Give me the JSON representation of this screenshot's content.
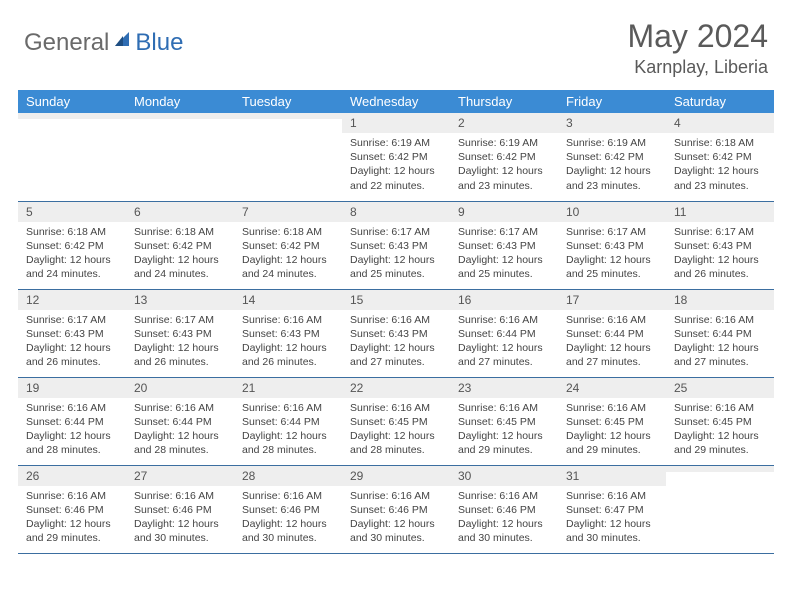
{
  "brand": {
    "part1": "General",
    "part2": "Blue",
    "color1": "#6a6a6a",
    "color2": "#2f6db3",
    "icon_color": "#2f6db3"
  },
  "title": "May 2024",
  "location": "Karnplay, Liberia",
  "colors": {
    "header_bg": "#3b8bd4",
    "header_fg": "#ffffff",
    "daynum_bg": "#eeeeee",
    "border": "#3b6ea0",
    "text": "#444444"
  },
  "day_headers": [
    "Sunday",
    "Monday",
    "Tuesday",
    "Wednesday",
    "Thursday",
    "Friday",
    "Saturday"
  ],
  "weeks": [
    [
      {
        "n": "",
        "sunrise": "",
        "sunset": "",
        "daylight": ""
      },
      {
        "n": "",
        "sunrise": "",
        "sunset": "",
        "daylight": ""
      },
      {
        "n": "",
        "sunrise": "",
        "sunset": "",
        "daylight": ""
      },
      {
        "n": "1",
        "sunrise": "6:19 AM",
        "sunset": "6:42 PM",
        "daylight": "12 hours and 22 minutes."
      },
      {
        "n": "2",
        "sunrise": "6:19 AM",
        "sunset": "6:42 PM",
        "daylight": "12 hours and 23 minutes."
      },
      {
        "n": "3",
        "sunrise": "6:19 AM",
        "sunset": "6:42 PM",
        "daylight": "12 hours and 23 minutes."
      },
      {
        "n": "4",
        "sunrise": "6:18 AM",
        "sunset": "6:42 PM",
        "daylight": "12 hours and 23 minutes."
      }
    ],
    [
      {
        "n": "5",
        "sunrise": "6:18 AM",
        "sunset": "6:42 PM",
        "daylight": "12 hours and 24 minutes."
      },
      {
        "n": "6",
        "sunrise": "6:18 AM",
        "sunset": "6:42 PM",
        "daylight": "12 hours and 24 minutes."
      },
      {
        "n": "7",
        "sunrise": "6:18 AM",
        "sunset": "6:42 PM",
        "daylight": "12 hours and 24 minutes."
      },
      {
        "n": "8",
        "sunrise": "6:17 AM",
        "sunset": "6:43 PM",
        "daylight": "12 hours and 25 minutes."
      },
      {
        "n": "9",
        "sunrise": "6:17 AM",
        "sunset": "6:43 PM",
        "daylight": "12 hours and 25 minutes."
      },
      {
        "n": "10",
        "sunrise": "6:17 AM",
        "sunset": "6:43 PM",
        "daylight": "12 hours and 25 minutes."
      },
      {
        "n": "11",
        "sunrise": "6:17 AM",
        "sunset": "6:43 PM",
        "daylight": "12 hours and 26 minutes."
      }
    ],
    [
      {
        "n": "12",
        "sunrise": "6:17 AM",
        "sunset": "6:43 PM",
        "daylight": "12 hours and 26 minutes."
      },
      {
        "n": "13",
        "sunrise": "6:17 AM",
        "sunset": "6:43 PM",
        "daylight": "12 hours and 26 minutes."
      },
      {
        "n": "14",
        "sunrise": "6:16 AM",
        "sunset": "6:43 PM",
        "daylight": "12 hours and 26 minutes."
      },
      {
        "n": "15",
        "sunrise": "6:16 AM",
        "sunset": "6:43 PM",
        "daylight": "12 hours and 27 minutes."
      },
      {
        "n": "16",
        "sunrise": "6:16 AM",
        "sunset": "6:44 PM",
        "daylight": "12 hours and 27 minutes."
      },
      {
        "n": "17",
        "sunrise": "6:16 AM",
        "sunset": "6:44 PM",
        "daylight": "12 hours and 27 minutes."
      },
      {
        "n": "18",
        "sunrise": "6:16 AM",
        "sunset": "6:44 PM",
        "daylight": "12 hours and 27 minutes."
      }
    ],
    [
      {
        "n": "19",
        "sunrise": "6:16 AM",
        "sunset": "6:44 PM",
        "daylight": "12 hours and 28 minutes."
      },
      {
        "n": "20",
        "sunrise": "6:16 AM",
        "sunset": "6:44 PM",
        "daylight": "12 hours and 28 minutes."
      },
      {
        "n": "21",
        "sunrise": "6:16 AM",
        "sunset": "6:44 PM",
        "daylight": "12 hours and 28 minutes."
      },
      {
        "n": "22",
        "sunrise": "6:16 AM",
        "sunset": "6:45 PM",
        "daylight": "12 hours and 28 minutes."
      },
      {
        "n": "23",
        "sunrise": "6:16 AM",
        "sunset": "6:45 PM",
        "daylight": "12 hours and 29 minutes."
      },
      {
        "n": "24",
        "sunrise": "6:16 AM",
        "sunset": "6:45 PM",
        "daylight": "12 hours and 29 minutes."
      },
      {
        "n": "25",
        "sunrise": "6:16 AM",
        "sunset": "6:45 PM",
        "daylight": "12 hours and 29 minutes."
      }
    ],
    [
      {
        "n": "26",
        "sunrise": "6:16 AM",
        "sunset": "6:46 PM",
        "daylight": "12 hours and 29 minutes."
      },
      {
        "n": "27",
        "sunrise": "6:16 AM",
        "sunset": "6:46 PM",
        "daylight": "12 hours and 30 minutes."
      },
      {
        "n": "28",
        "sunrise": "6:16 AM",
        "sunset": "6:46 PM",
        "daylight": "12 hours and 30 minutes."
      },
      {
        "n": "29",
        "sunrise": "6:16 AM",
        "sunset": "6:46 PM",
        "daylight": "12 hours and 30 minutes."
      },
      {
        "n": "30",
        "sunrise": "6:16 AM",
        "sunset": "6:46 PM",
        "daylight": "12 hours and 30 minutes."
      },
      {
        "n": "31",
        "sunrise": "6:16 AM",
        "sunset": "6:47 PM",
        "daylight": "12 hours and 30 minutes."
      },
      {
        "n": "",
        "sunrise": "",
        "sunset": "",
        "daylight": ""
      }
    ]
  ],
  "labels": {
    "sunrise": "Sunrise:",
    "sunset": "Sunset:",
    "daylight": "Daylight:"
  }
}
